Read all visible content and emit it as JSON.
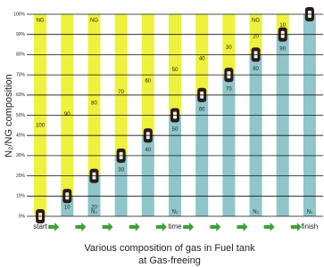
{
  "chart_data": {
    "type": "bar",
    "stacked": true,
    "title_lines": [
      "Various composition of gas in Fuel tank",
      "at Gas-freeing"
    ],
    "y_label": "N₂/NG composition",
    "categories": [
      "start",
      null,
      null,
      null,
      null,
      "time",
      null,
      null,
      null,
      null,
      "finish"
    ],
    "series": [
      {
        "name": "N₂",
        "color": "#8fc6c9",
        "values": [
          0,
          10,
          20,
          30,
          40,
          50,
          60,
          70,
          80,
          90,
          100
        ]
      },
      {
        "name": "NG",
        "color": "#eef23c",
        "values": [
          100,
          90,
          80,
          70,
          60,
          50,
          40,
          30,
          20,
          10,
          0
        ]
      }
    ],
    "top_labels": [
      "NG",
      null,
      "NG",
      null,
      null,
      null,
      null,
      null,
      "NG",
      null,
      null
    ],
    "bottom_labels": [
      null,
      null,
      "N₂",
      null,
      null,
      "N₂",
      null,
      null,
      "N₂",
      null,
      "N₂"
    ],
    "ylim": [
      0,
      100
    ],
    "yticks": [
      {
        "value": 0,
        "label": "0%"
      },
      {
        "value": 10,
        "label": "10%"
      },
      {
        "value": 20,
        "label": "20%"
      },
      {
        "value": 30,
        "label": "30%"
      },
      {
        "value": 40,
        "label": "40%"
      },
      {
        "value": 50,
        "label": "50%"
      },
      {
        "value": 60,
        "label": "60%"
      },
      {
        "value": 70,
        "label": "70%"
      },
      {
        "value": 80,
        "label": "80%"
      },
      {
        "value": 90,
        "label": "90%"
      },
      {
        "value": 100,
        "label": "100%"
      }
    ],
    "grid": true,
    "arrow_color": "#3aa23a"
  }
}
